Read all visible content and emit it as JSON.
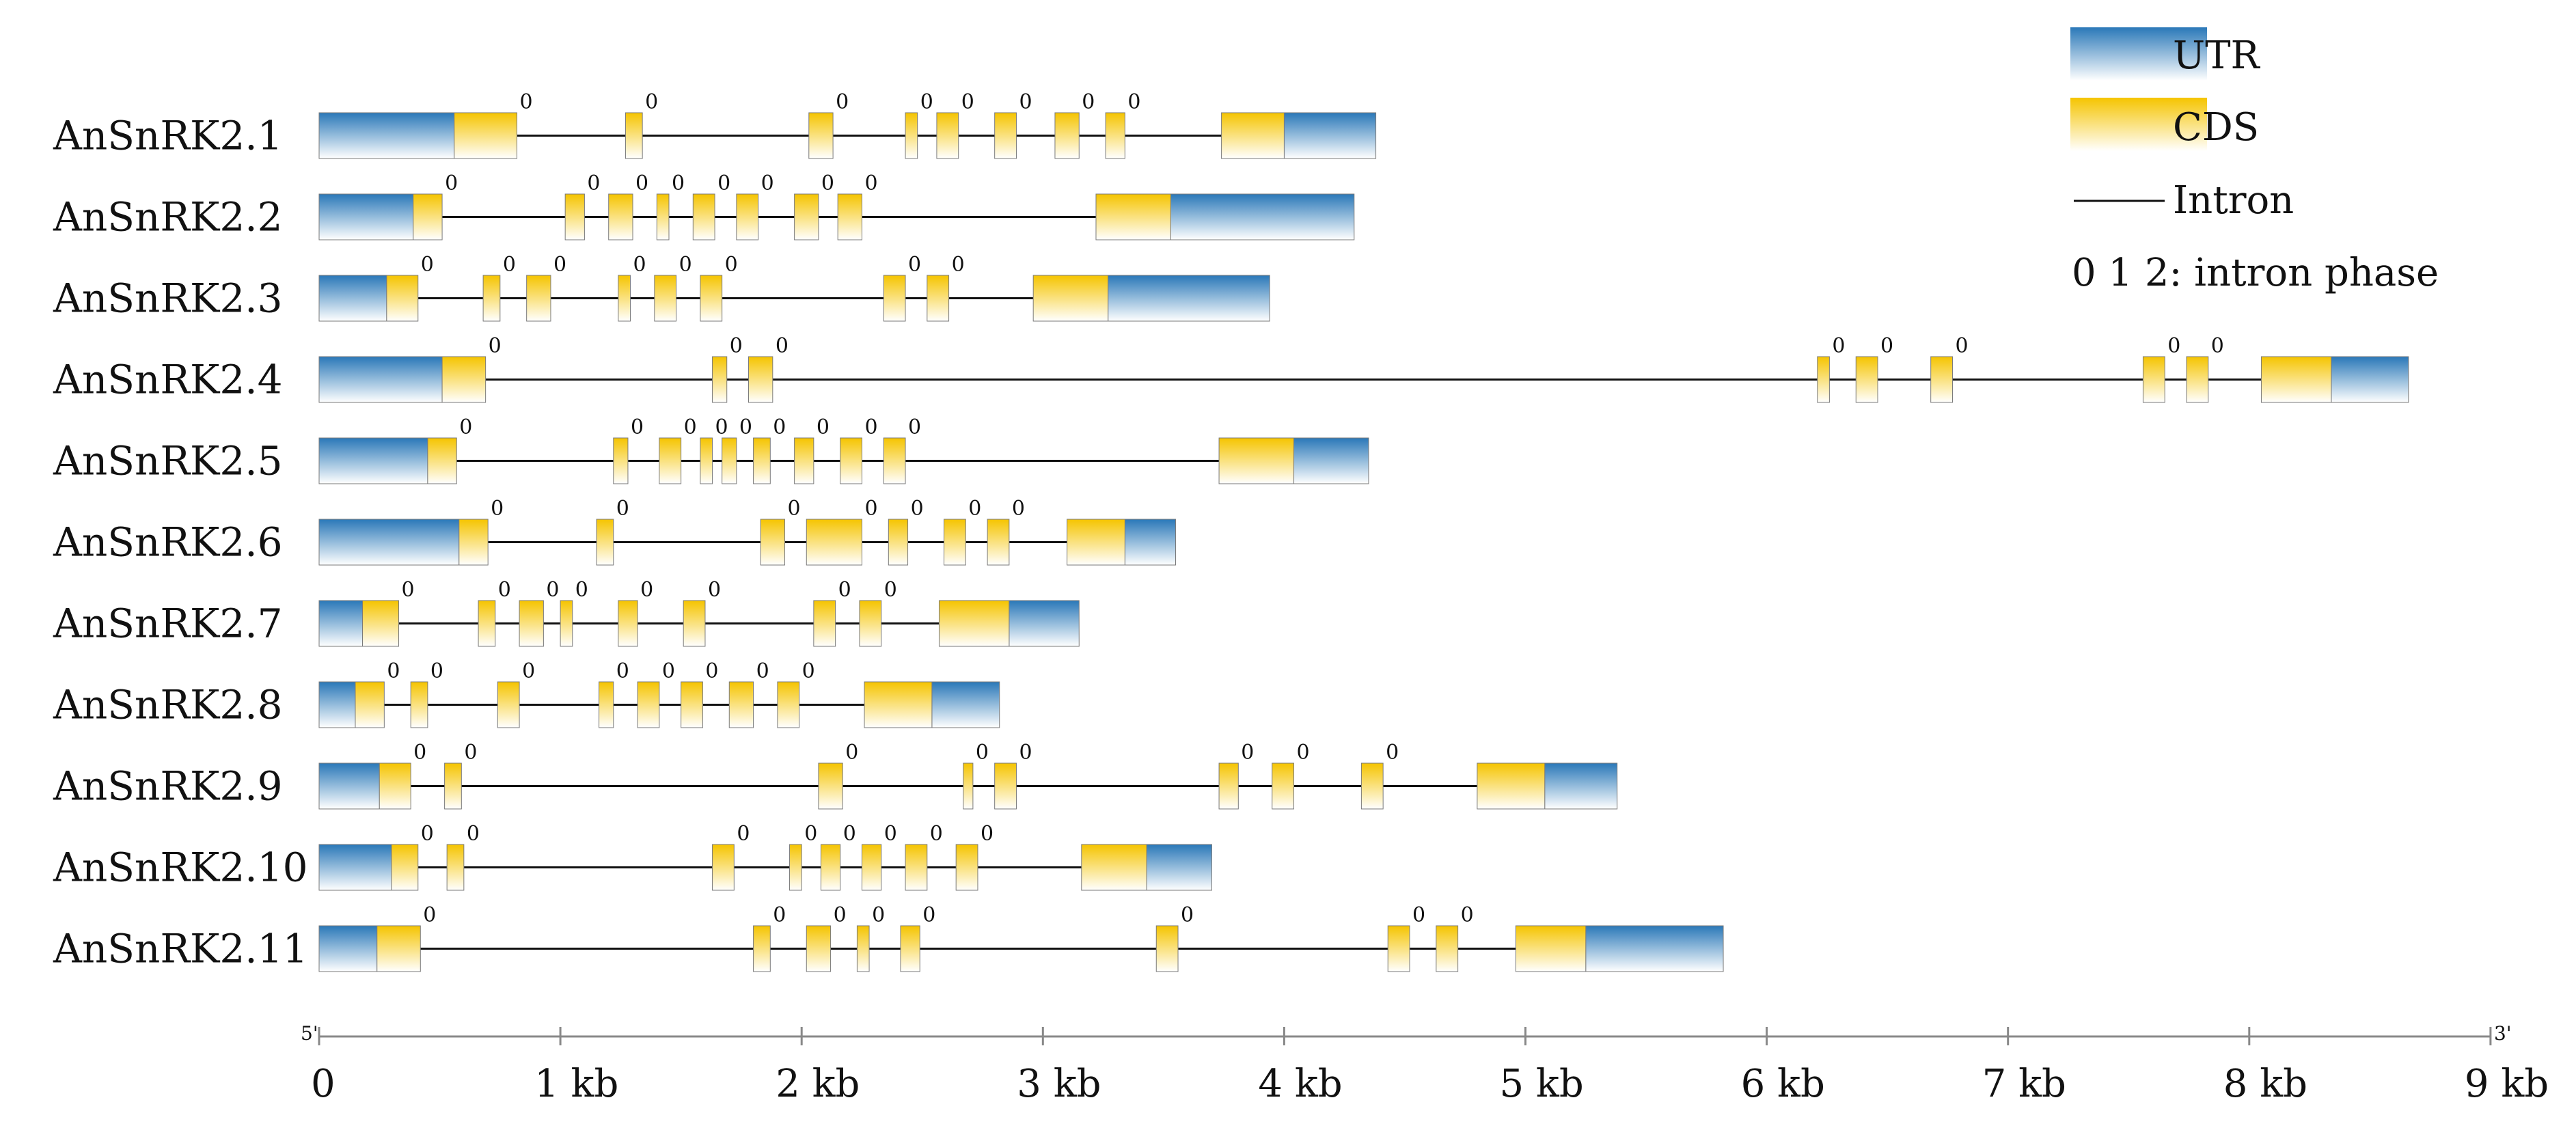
{
  "legend": {
    "utr": "UTR",
    "cds": "CDS",
    "intron": "Intron",
    "phase": "0 1 2: intron phase"
  },
  "axis": {
    "start_label": "5'",
    "end_label": "3'",
    "min_kb": 0,
    "max_kb": 9,
    "ticks": [
      {
        "kb": 0,
        "label": "0"
      },
      {
        "kb": 1,
        "label": "1 kb"
      },
      {
        "kb": 2,
        "label": "2 kb"
      },
      {
        "kb": 3,
        "label": "3 kb"
      },
      {
        "kb": 4,
        "label": "4 kb"
      },
      {
        "kb": 5,
        "label": "5 kb"
      },
      {
        "kb": 6,
        "label": "6 kb"
      },
      {
        "kb": 7,
        "label": "7 kb"
      },
      {
        "kb": 8,
        "label": "8 kb"
      },
      {
        "kb": 9,
        "label": "9 kb"
      }
    ]
  },
  "colors": {
    "utr_top": "#2a78b8",
    "utr_bottom": "#ffffff",
    "cds_top": "#f5c400",
    "cds_bottom": "#ffffff",
    "intron": "#111111",
    "axis": "#888888"
  },
  "genes": [
    {
      "name": "AnSnRK2.1",
      "length": 4.38,
      "utr": [
        [
          0,
          0.56
        ],
        [
          4.0,
          4.38
        ]
      ],
      "cds": [
        [
          0.56,
          0.82
        ],
        [
          1.27,
          1.34
        ],
        [
          2.03,
          2.13
        ],
        [
          2.43,
          2.48
        ],
        [
          2.56,
          2.65
        ],
        [
          2.8,
          2.89
        ],
        [
          3.05,
          3.15
        ],
        [
          3.26,
          3.34
        ],
        [
          3.74,
          4.0
        ]
      ],
      "phases": [
        "0",
        "0",
        "0",
        "0",
        "0",
        "0",
        "0",
        "0"
      ]
    },
    {
      "name": "AnSnRK2.2",
      "length": 4.29,
      "utr": [
        [
          0,
          0.39
        ],
        [
          3.53,
          4.29
        ]
      ],
      "cds": [
        [
          0.39,
          0.51
        ],
        [
          1.02,
          1.1
        ],
        [
          1.2,
          1.3
        ],
        [
          1.4,
          1.45
        ],
        [
          1.55,
          1.64
        ],
        [
          1.73,
          1.82
        ],
        [
          1.97,
          2.07
        ],
        [
          2.15,
          2.25
        ],
        [
          3.22,
          3.53
        ]
      ],
      "phases": [
        "0",
        "0",
        "0",
        "0",
        "0",
        "0",
        "0",
        "0"
      ]
    },
    {
      "name": "AnSnRK2.3",
      "length": 3.94,
      "utr": [
        [
          0,
          0.28
        ],
        [
          3.27,
          3.94
        ]
      ],
      "cds": [
        [
          0.28,
          0.41
        ],
        [
          0.68,
          0.75
        ],
        [
          0.86,
          0.96
        ],
        [
          1.24,
          1.29
        ],
        [
          1.39,
          1.48
        ],
        [
          1.58,
          1.67
        ],
        [
          2.34,
          2.43
        ],
        [
          2.52,
          2.61
        ],
        [
          2.96,
          3.27
        ]
      ],
      "phases": [
        "0",
        "0",
        "0",
        "0",
        "0",
        "0",
        "0",
        "0"
      ]
    },
    {
      "name": "AnSnRK2.4",
      "length": 8.66,
      "utr": [
        [
          0,
          0.51
        ],
        [
          8.34,
          8.66
        ]
      ],
      "cds": [
        [
          0.51,
          0.69
        ],
        [
          1.63,
          1.69
        ],
        [
          1.78,
          1.88
        ],
        [
          6.21,
          6.26
        ],
        [
          6.37,
          6.46
        ],
        [
          6.68,
          6.77
        ],
        [
          7.56,
          7.65
        ],
        [
          7.74,
          7.83
        ],
        [
          8.05,
          8.34
        ]
      ],
      "phases": [
        "0",
        "0",
        "0",
        "0",
        "0",
        "0",
        "0",
        "0"
      ]
    },
    {
      "name": "AnSnRK2.5",
      "length": 4.35,
      "utr": [
        [
          0,
          0.45
        ],
        [
          4.04,
          4.35
        ]
      ],
      "cds": [
        [
          0.45,
          0.57
        ],
        [
          1.22,
          1.28
        ],
        [
          1.41,
          1.5
        ],
        [
          1.58,
          1.63
        ],
        [
          1.67,
          1.73
        ],
        [
          1.8,
          1.87
        ],
        [
          1.97,
          2.05
        ],
        [
          2.16,
          2.25
        ],
        [
          2.34,
          2.43
        ],
        [
          3.73,
          4.04
        ]
      ],
      "phases": [
        "0",
        "0",
        "0",
        "0",
        "0",
        "0",
        "0",
        "0",
        "0"
      ]
    },
    {
      "name": "AnSnRK2.6",
      "length": 3.55,
      "utr": [
        [
          0,
          0.58
        ],
        [
          3.34,
          3.55
        ]
      ],
      "cds": [
        [
          0.58,
          0.7
        ],
        [
          1.15,
          1.22
        ],
        [
          1.83,
          1.93
        ],
        [
          2.02,
          2.25
        ],
        [
          2.36,
          2.44
        ],
        [
          2.59,
          2.68
        ],
        [
          2.77,
          2.86
        ],
        [
          3.1,
          3.34
        ]
      ],
      "phases": [
        "0",
        "0",
        "0",
        "0",
        "0",
        "0",
        "0"
      ]
    },
    {
      "name": "AnSnRK2.7",
      "length": 3.15,
      "utr": [
        [
          0,
          0.18
        ],
        [
          2.86,
          3.15
        ]
      ],
      "cds": [
        [
          0.18,
          0.33
        ],
        [
          0.66,
          0.73
        ],
        [
          0.83,
          0.93
        ],
        [
          1.0,
          1.05
        ],
        [
          1.24,
          1.32
        ],
        [
          1.51,
          1.6
        ],
        [
          2.05,
          2.14
        ],
        [
          2.24,
          2.33
        ],
        [
          2.57,
          2.86
        ]
      ],
      "phases": [
        "0",
        "0",
        "0",
        "0",
        "0",
        "0",
        "0",
        "0"
      ]
    },
    {
      "name": "AnSnRK2.8",
      "length": 2.82,
      "utr": [
        [
          0,
          0.15
        ],
        [
          2.54,
          2.82
        ]
      ],
      "cds": [
        [
          0.15,
          0.27
        ],
        [
          0.38,
          0.45
        ],
        [
          0.74,
          0.83
        ],
        [
          1.16,
          1.22
        ],
        [
          1.32,
          1.41
        ],
        [
          1.5,
          1.59
        ],
        [
          1.7,
          1.8
        ],
        [
          1.9,
          1.99
        ],
        [
          2.26,
          2.54
        ]
      ],
      "phases": [
        "0",
        "0",
        "0",
        "0",
        "0",
        "0",
        "0",
        "0"
      ]
    },
    {
      "name": "AnSnRK2.9",
      "length": 5.38,
      "utr": [
        [
          0,
          0.25
        ],
        [
          5.08,
          5.38
        ]
      ],
      "cds": [
        [
          0.25,
          0.38
        ],
        [
          0.52,
          0.59
        ],
        [
          2.07,
          2.17
        ],
        [
          2.67,
          2.71
        ],
        [
          2.8,
          2.89
        ],
        [
          3.73,
          3.81
        ],
        [
          3.95,
          4.04
        ],
        [
          4.32,
          4.41
        ],
        [
          4.8,
          5.08
        ]
      ],
      "phases": [
        "0",
        "0",
        "0",
        "0",
        "0",
        "0",
        "0",
        "0"
      ]
    },
    {
      "name": "AnSnRK2.10",
      "length": 3.7,
      "utr": [
        [
          0,
          0.3
        ],
        [
          3.43,
          3.7
        ]
      ],
      "cds": [
        [
          0.3,
          0.41
        ],
        [
          0.53,
          0.6
        ],
        [
          1.63,
          1.72
        ],
        [
          1.95,
          2.0
        ],
        [
          2.08,
          2.16
        ],
        [
          2.25,
          2.33
        ],
        [
          2.43,
          2.52
        ],
        [
          2.64,
          2.73
        ],
        [
          3.16,
          3.43
        ]
      ],
      "phases": [
        "0",
        "0",
        "0",
        "0",
        "0",
        "0",
        "0",
        "0"
      ]
    },
    {
      "name": "AnSnRK2.11",
      "length": 5.82,
      "utr": [
        [
          0,
          0.24
        ],
        [
          5.25,
          5.82
        ]
      ],
      "cds": [
        [
          0.24,
          0.42
        ],
        [
          1.8,
          1.87
        ],
        [
          2.02,
          2.12
        ],
        [
          2.23,
          2.28
        ],
        [
          2.41,
          2.49
        ],
        [
          3.47,
          3.56
        ],
        [
          4.43,
          4.52
        ],
        [
          4.63,
          4.72
        ],
        [
          4.96,
          5.25
        ]
      ],
      "phases": [
        "0",
        "0",
        "0",
        "0",
        "0",
        "0",
        "0",
        "0"
      ]
    }
  ]
}
